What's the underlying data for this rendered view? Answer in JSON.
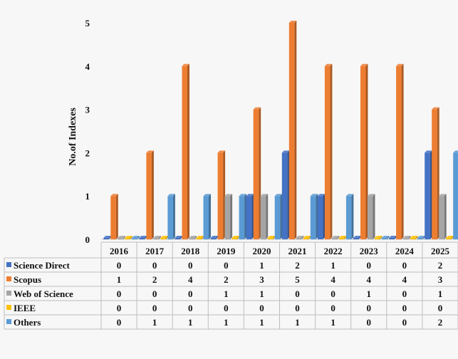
{
  "chart_data": {
    "type": "bar",
    "title": "",
    "xlabel": "",
    "ylabel": "No.of Indexes",
    "ylim": [
      0,
      5
    ],
    "yticks": [
      0,
      1,
      2,
      3,
      4,
      5
    ],
    "grid": false,
    "legend": "data-table-left",
    "categories": [
      "2016",
      "2017",
      "2018",
      "2019",
      "2020",
      "2021",
      "2022",
      "2023",
      "2024",
      "2025"
    ],
    "series": [
      {
        "name": "Science Direct",
        "color": "#4472c4",
        "values": [
          0,
          0,
          0,
          0,
          1,
          2,
          1,
          0,
          0,
          2
        ]
      },
      {
        "name": "Scopus",
        "color": "#ed7d31",
        "values": [
          1,
          2,
          4,
          2,
          3,
          5,
          4,
          4,
          4,
          3
        ]
      },
      {
        "name": "Web of Science",
        "color": "#a5a5a5",
        "values": [
          0,
          0,
          0,
          1,
          1,
          0,
          0,
          1,
          0,
          1
        ]
      },
      {
        "name": "IEEE",
        "color": "#ffc000",
        "values": [
          0,
          0,
          0,
          0,
          0,
          0,
          0,
          0,
          0,
          0
        ]
      },
      {
        "name": "Others",
        "color": "#5b9bd5",
        "values": [
          0,
          1,
          1,
          1,
          1,
          1,
          1,
          0,
          0,
          2
        ]
      }
    ]
  }
}
